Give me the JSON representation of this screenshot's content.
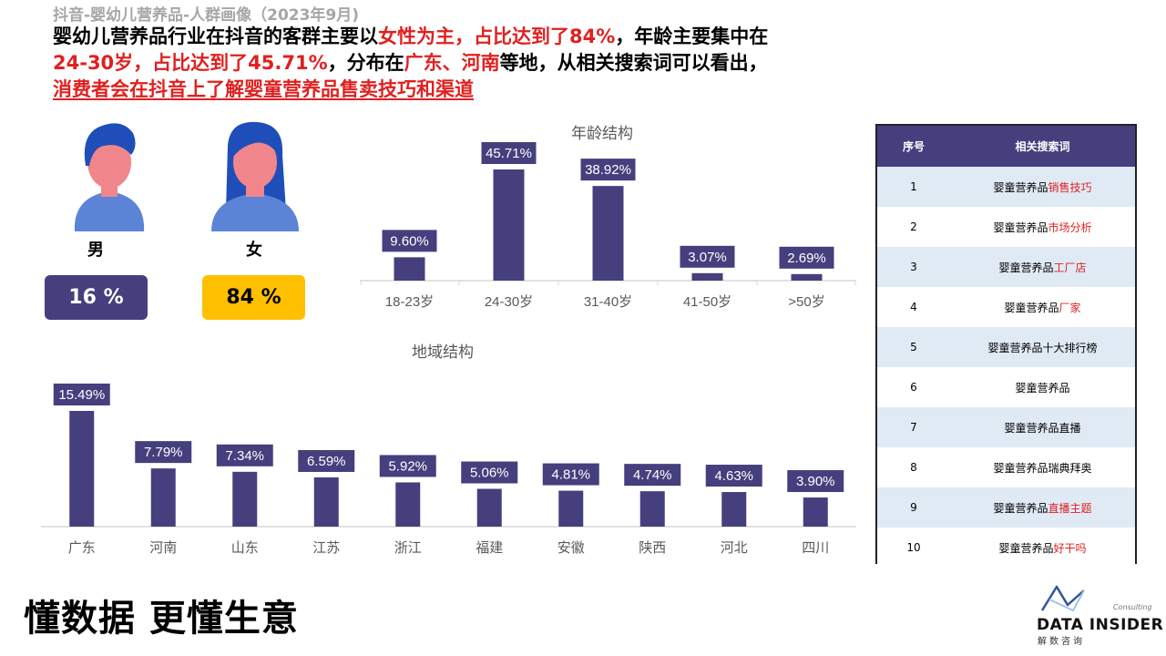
{
  "header": {
    "subtitle": "抖音-婴幼儿营养品-人群画像（2023年9月)",
    "headline": {
      "seg1": "婴幼儿营养品行业在抖音的客群主要以",
      "seg2": "女性为主，占比达到了84%",
      "seg3": "，年龄主要集中在",
      "seg4": "24-30岁，占比达到了45.71%",
      "seg5": "，分布在",
      "seg6": "广东、河南",
      "seg7": "等地，从相关搜索词可以看出，",
      "seg8": "消费者会在抖音上了解婴童营养品售卖技巧和渠道"
    }
  },
  "gender": {
    "male_label": "男",
    "female_label": "女",
    "male_value": "16 %",
    "female_value": "84 %",
    "male_color": "#453f7e",
    "female_color": "#ffc000"
  },
  "chart_data": [
    {
      "type": "bar",
      "title": "年龄结构",
      "categories": [
        "18-23岁",
        "24-30岁",
        "31-40岁",
        "41-50岁",
        ">50岁"
      ],
      "values": [
        9.6,
        45.71,
        38.92,
        3.07,
        2.69
      ],
      "labels": [
        "9.60%",
        "45.71%",
        "38.92%",
        "3.07%",
        "2.69%"
      ],
      "unit": "%",
      "color": "#453f7e"
    },
    {
      "type": "bar",
      "title": "地域结构",
      "categories": [
        "广东",
        "河南",
        "山东",
        "江苏",
        "浙江",
        "福建",
        "安徽",
        "陕西",
        "河北",
        "四川"
      ],
      "values": [
        15.49,
        7.79,
        7.34,
        6.59,
        5.92,
        5.06,
        4.81,
        4.74,
        4.63,
        3.9
      ],
      "labels": [
        "15.49%",
        "7.79%",
        "7.34%",
        "6.59%",
        "5.92%",
        "5.06%",
        "4.81%",
        "4.74%",
        "4.63%",
        "3.90%"
      ],
      "unit": "%",
      "color": "#453f7e"
    }
  ],
  "search_table": {
    "headers": [
      "序号",
      "相关搜索词"
    ],
    "rows": [
      {
        "no": "1",
        "base": "婴童营养品",
        "hl": "销售技巧"
      },
      {
        "no": "2",
        "base": "婴童营养品",
        "hl": "市场分析"
      },
      {
        "no": "3",
        "base": "婴童营养品",
        "hl": "工厂店"
      },
      {
        "no": "4",
        "base": "婴童营养品",
        "hl": "厂家"
      },
      {
        "no": "5",
        "base": "婴童营养品十大排行榜",
        "hl": ""
      },
      {
        "no": "6",
        "base": "婴童营养品",
        "hl": ""
      },
      {
        "no": "7",
        "base": "婴童营养品直播",
        "hl": ""
      },
      {
        "no": "8",
        "base": "婴童营养品瑞典拜奥",
        "hl": ""
      },
      {
        "no": "9",
        "base": "婴童营养品",
        "hl": "直播主题"
      },
      {
        "no": "10",
        "base": "婴童营养品",
        "hl": "好干吗"
      }
    ],
    "highlight_color": "#e02020"
  },
  "footer": {
    "slogan": "懂数据 更懂生意",
    "brand_name": "DATA INSIDER",
    "brand_sub": "解数咨询",
    "brand_tag": "Consulting"
  }
}
